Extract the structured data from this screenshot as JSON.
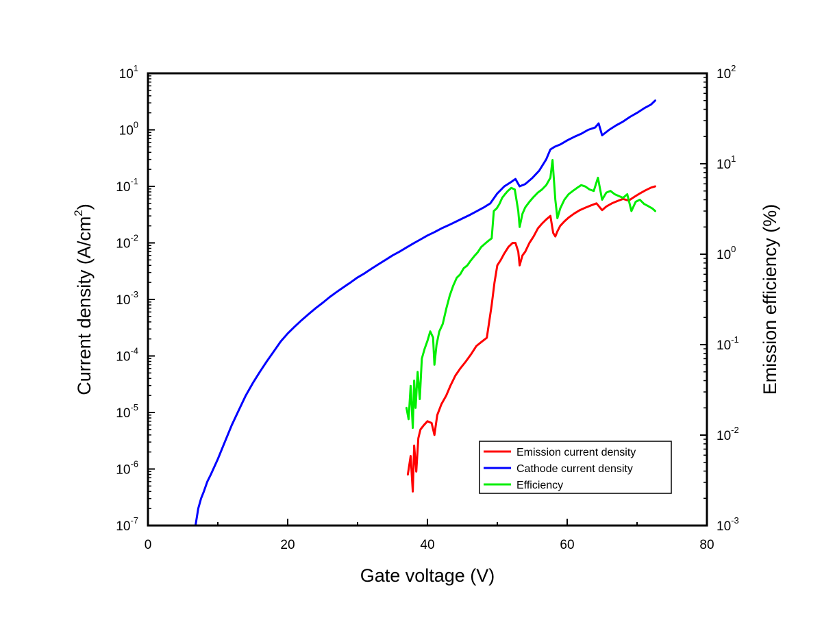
{
  "chart_data": {
    "type": "line",
    "xlabel": "Gate voltage (V)",
    "ylabel_left": {
      "text": "Current density (A/cm",
      "sup": "2",
      "close": ")"
    },
    "ylabel_right": "Emission efficiency (%)",
    "xlim": [
      0,
      80
    ],
    "xticks": [
      "0",
      "20",
      "40",
      "60",
      "80"
    ],
    "xtick_values": [
      0,
      20,
      40,
      60,
      80
    ],
    "ylim_left": [
      1e-07,
      10
    ],
    "ylim_right": [
      0.001,
      100
    ],
    "yscale": "log",
    "yticks_left": [
      {
        "base": "10",
        "exp": "1"
      },
      {
        "base": "10",
        "exp": "0"
      },
      {
        "base": "10",
        "exp": "-1"
      },
      {
        "base": "10",
        "exp": "-2"
      },
      {
        "base": "10",
        "exp": "-3"
      },
      {
        "base": "10",
        "exp": "-4"
      },
      {
        "base": "10",
        "exp": "-5"
      },
      {
        "base": "10",
        "exp": "-6"
      },
      {
        "base": "10",
        "exp": "-7"
      }
    ],
    "yticks_right": [
      {
        "base": "10",
        "exp": "2"
      },
      {
        "base": "10",
        "exp": "1"
      },
      {
        "base": "10",
        "exp": "0"
      },
      {
        "base": "10",
        "exp": "-1"
      },
      {
        "base": "10",
        "exp": "-2"
      },
      {
        "base": "10",
        "exp": "-3"
      }
    ],
    "grid": false,
    "legend_position": "bottom-right",
    "series": [
      {
        "name": "Emission current density",
        "axis": "left",
        "color": "#ff0000",
        "x": [
          37.2,
          37.6,
          37.9,
          38.1,
          38.4,
          38.7,
          39.0,
          39.5,
          40.0,
          40.6,
          41.0,
          41.4,
          42.0,
          42.7,
          43.3,
          44.0,
          44.7,
          45.5,
          46.3,
          47.0,
          47.8,
          48.5,
          49.2,
          49.6,
          50.0,
          50.5,
          51.0,
          51.6,
          52.2,
          52.6,
          53.0,
          53.2,
          53.6,
          54.0,
          54.6,
          55.2,
          55.8,
          56.4,
          57.0,
          57.6,
          58.0,
          58.3,
          58.6,
          59.0,
          59.6,
          60.2,
          61.0,
          61.8,
          62.6,
          63.4,
          64.2,
          65.0,
          65.6,
          66.4,
          67.2,
          68.0,
          68.8,
          69.6,
          70.4,
          71.2,
          72.0,
          72.6
        ],
        "y": [
          8e-07,
          1.7e-06,
          4e-07,
          2.6e-06,
          9e-07,
          3.5e-06,
          5e-06,
          6e-06,
          7e-06,
          6.5e-06,
          4e-06,
          9e-06,
          1.4e-05,
          2e-05,
          3e-05,
          4.5e-05,
          6e-05,
          8e-05,
          0.00011,
          0.00015,
          0.00018,
          0.00021,
          0.0008,
          0.002,
          0.004,
          0.005,
          0.0065,
          0.0085,
          0.01,
          0.01,
          0.007,
          0.004,
          0.006,
          0.007,
          0.01,
          0.013,
          0.018,
          0.022,
          0.026,
          0.03,
          0.015,
          0.013,
          0.016,
          0.02,
          0.024,
          0.028,
          0.033,
          0.038,
          0.042,
          0.046,
          0.05,
          0.038,
          0.044,
          0.05,
          0.055,
          0.06,
          0.056,
          0.065,
          0.075,
          0.085,
          0.095,
          0.1
        ]
      },
      {
        "name": "Cathode current density",
        "axis": "left",
        "color": "#0000ff",
        "x": [
          6.8,
          7.2,
          7.6,
          8.0,
          8.5,
          9.0,
          10.0,
          11.0,
          12.0,
          13.0,
          14.0,
          15.0,
          16.0,
          17.0,
          18.0,
          19.0,
          20.0,
          21.0,
          22.0,
          23.0,
          24.0,
          25.0,
          26.0,
          27.0,
          28.0,
          29.0,
          30.0,
          31.0,
          32.0,
          33.0,
          34.0,
          35.0,
          36.0,
          37.0,
          38.0,
          39.0,
          40.0,
          41.0,
          42.0,
          43.0,
          44.0,
          45.0,
          46.0,
          47.0,
          48.0,
          49.0,
          50.0,
          51.0,
          52.0,
          52.6,
          53.2,
          54.0,
          55.0,
          56.0,
          57.0,
          57.6,
          58.2,
          59.0,
          60.0,
          61.0,
          62.0,
          63.0,
          64.0,
          64.5,
          65.0,
          66.0,
          67.0,
          68.0,
          69.0,
          70.0,
          71.0,
          72.0,
          72.6
        ],
        "y": [
          1e-07,
          2e-07,
          3e-07,
          4e-07,
          6e-07,
          8e-07,
          1.5e-06,
          3e-06,
          6e-06,
          1.1e-05,
          2e-05,
          3.3e-05,
          5.2e-05,
          8e-05,
          0.00012,
          0.00018,
          0.00025,
          0.00033,
          0.00043,
          0.00055,
          0.0007,
          0.00087,
          0.0011,
          0.00135,
          0.00165,
          0.002,
          0.00245,
          0.0029,
          0.0035,
          0.0042,
          0.005,
          0.006,
          0.007,
          0.0083,
          0.0098,
          0.0115,
          0.0135,
          0.0155,
          0.018,
          0.0205,
          0.0235,
          0.027,
          0.031,
          0.036,
          0.042,
          0.05,
          0.075,
          0.1,
          0.12,
          0.135,
          0.1,
          0.11,
          0.14,
          0.19,
          0.3,
          0.45,
          0.5,
          0.55,
          0.65,
          0.75,
          0.85,
          1.0,
          1.1,
          1.3,
          0.8,
          1.0,
          1.2,
          1.4,
          1.7,
          2.0,
          2.4,
          2.8,
          3.3
        ]
      },
      {
        "name": "Efficiency",
        "axis": "right",
        "color": "#00ee00",
        "x": [
          37.0,
          37.3,
          37.6,
          37.9,
          38.1,
          38.3,
          38.6,
          38.9,
          39.2,
          39.6,
          40.0,
          40.4,
          40.8,
          41.0,
          41.3,
          41.7,
          42.2,
          42.7,
          43.2,
          43.7,
          44.2,
          44.7,
          45.2,
          45.7,
          46.2,
          46.7,
          47.2,
          47.7,
          48.2,
          48.7,
          49.2,
          49.5,
          49.9,
          50.3,
          50.7,
          51.1,
          51.5,
          52.0,
          52.5,
          53.0,
          53.2,
          53.6,
          54.0,
          54.6,
          55.2,
          55.8,
          56.4,
          57.0,
          57.6,
          57.9,
          58.3,
          58.6,
          59.0,
          59.6,
          60.2,
          60.8,
          61.4,
          62.0,
          62.6,
          63.2,
          63.8,
          64.4,
          65.0,
          65.6,
          66.2,
          66.8,
          67.4,
          68.0,
          68.6,
          69.2,
          69.8,
          70.4,
          71.0,
          71.6,
          72.2,
          72.6
        ],
        "y": [
          0.02,
          0.015,
          0.035,
          0.012,
          0.04,
          0.02,
          0.05,
          0.025,
          0.07,
          0.09,
          0.11,
          0.14,
          0.12,
          0.06,
          0.1,
          0.14,
          0.17,
          0.25,
          0.35,
          0.45,
          0.55,
          0.6,
          0.7,
          0.75,
          0.85,
          0.95,
          1.05,
          1.2,
          1.3,
          1.4,
          1.5,
          3.0,
          3.2,
          3.6,
          4.2,
          4.6,
          5.0,
          5.4,
          5.2,
          3.0,
          2.0,
          2.8,
          3.3,
          3.8,
          4.3,
          4.8,
          5.2,
          5.8,
          7.0,
          11.0,
          4.0,
          2.5,
          3.2,
          4.0,
          4.6,
          5.0,
          5.4,
          5.8,
          5.6,
          5.2,
          5.0,
          7.0,
          4.0,
          4.8,
          5.0,
          4.6,
          4.4,
          4.2,
          4.6,
          3.0,
          3.8,
          4.0,
          3.6,
          3.4,
          3.2,
          3.0
        ]
      }
    ]
  }
}
